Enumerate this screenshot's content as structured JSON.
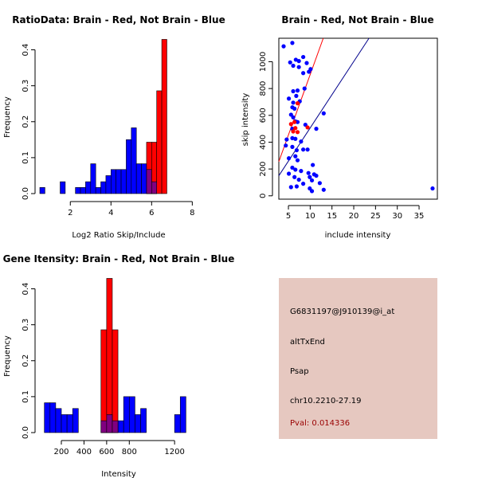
{
  "chart_data": [
    {
      "type": "histogram",
      "title": "RatioData: Brain - Red, Not Brain - Blue",
      "xlabel": "Log2 Ratio Skip/Include",
      "ylabel": "Frequency",
      "xlim": [
        0.5,
        8.3
      ],
      "ylim": [
        0,
        0.43
      ],
      "xticks": [
        2,
        4,
        6,
        8
      ],
      "yticks": [
        0.0,
        0.1,
        0.2,
        0.3,
        0.4
      ],
      "bins": [
        0.5,
        0.75,
        1.0,
        1.25,
        1.5,
        1.75,
        2.0,
        2.25,
        2.5,
        2.75,
        3.0,
        3.25,
        3.5,
        3.75,
        4.0,
        4.25,
        4.5,
        4.75,
        5.0,
        5.25,
        5.5,
        5.75,
        6.0,
        6.25,
        6.5,
        6.75,
        7.0,
        7.25,
        7.5,
        7.75,
        8.0
      ],
      "series": [
        {
          "name": "Brain",
          "color": "#ff0000",
          "values": [
            0,
            0,
            0,
            0,
            0,
            0,
            0,
            0,
            0,
            0,
            0,
            0,
            0,
            0,
            0,
            0,
            0,
            0,
            0,
            0,
            0,
            0.143,
            0.143,
            0.286,
            0.429,
            0,
            0,
            0,
            0,
            0
          ]
        },
        {
          "name": "Not Brain",
          "color": "#0000ff",
          "values": [
            0.017,
            0,
            0,
            0,
            0.033,
            0,
            0,
            0.017,
            0.017,
            0.033,
            0.083,
            0.017,
            0.033,
            0.05,
            0.067,
            0.067,
            0.067,
            0.15,
            0.183,
            0.083,
            0.083,
            0.067,
            0.033,
            0,
            0,
            0,
            0,
            0,
            0,
            0
          ]
        }
      ]
    },
    {
      "type": "scatter",
      "title": "Brain - Red, Not Brain - Blue",
      "xlabel": "include intensity",
      "ylabel": "skip intensity",
      "xlim": [
        2.8,
        39.2
      ],
      "ylim": [
        -25,
        1175
      ],
      "xticks": [
        5,
        10,
        15,
        20,
        25,
        30,
        35
      ],
      "yticks": [
        0,
        200,
        400,
        600,
        800,
        1000
      ],
      "series": [
        {
          "name": "Not Brain",
          "color": "#0000ff",
          "points": [
            [
              3.9,
              1115
            ],
            [
              5.9,
              1140
            ],
            [
              6.7,
              1015
            ],
            [
              5.4,
              995
            ],
            [
              6.1,
              970
            ],
            [
              7.4,
              1005
            ],
            [
              7.4,
              960
            ],
            [
              8.4,
              1035
            ],
            [
              8.4,
              915
            ],
            [
              9.2,
              990
            ],
            [
              10.1,
              945
            ],
            [
              9.7,
              925
            ],
            [
              7.1,
              785
            ],
            [
              6.1,
              780
            ],
            [
              6.8,
              745
            ],
            [
              8.7,
              800
            ],
            [
              5.1,
              725
            ],
            [
              6.1,
              695
            ],
            [
              5.9,
              660
            ],
            [
              7.6,
              705
            ],
            [
              6.4,
              650
            ],
            [
              5.6,
              605
            ],
            [
              6.1,
              585
            ],
            [
              7.1,
              550
            ],
            [
              6.6,
              555
            ],
            [
              8.9,
              530
            ],
            [
              13.1,
              615
            ],
            [
              11.4,
              500
            ],
            [
              5.9,
              500
            ],
            [
              4.6,
              420
            ],
            [
              5.9,
              430
            ],
            [
              6.6,
              425
            ],
            [
              7.9,
              405
            ],
            [
              4.4,
              375
            ],
            [
              5.9,
              365
            ],
            [
              6.9,
              340
            ],
            [
              8.4,
              345
            ],
            [
              9.4,
              345
            ],
            [
              5.1,
              280
            ],
            [
              6.6,
              295
            ],
            [
              7.1,
              265
            ],
            [
              5.9,
              210
            ],
            [
              10.6,
              230
            ],
            [
              6.6,
              195
            ],
            [
              7.9,
              185
            ],
            [
              5.1,
              165
            ],
            [
              9.6,
              170
            ],
            [
              10.9,
              160
            ],
            [
              6.4,
              140
            ],
            [
              9.9,
              140
            ],
            [
              11.4,
              150
            ],
            [
              7.4,
              120
            ],
            [
              10.4,
              115
            ],
            [
              12.2,
              95
            ],
            [
              8.4,
              90
            ],
            [
              5.6,
              65
            ],
            [
              6.9,
              70
            ],
            [
              9.9,
              55
            ],
            [
              13.1,
              45
            ],
            [
              10.4,
              35
            ],
            [
              38.1,
              55
            ]
          ]
        },
        {
          "name": "Brain",
          "color": "#ff0000",
          "points": [
            [
              5.6,
              535
            ],
            [
              6.4,
              550
            ],
            [
              6.6,
              505
            ],
            [
              7.1,
              475
            ],
            [
              7.1,
              690
            ],
            [
              9.4,
              510
            ],
            [
              6.1,
              480
            ]
          ]
        }
      ],
      "lines": [
        {
          "color": "#ff0000",
          "from": [
            2.8,
            255
          ],
          "to": [
            13.0,
            1175
          ]
        },
        {
          "color": "#00008b",
          "from": [
            2.8,
            150
          ],
          "to": [
            23.5,
            1175
          ]
        }
      ]
    },
    {
      "type": "histogram",
      "title": "Gene Itensity: Brain - Red, Not Brain - Blue",
      "xlabel": "Intensity",
      "ylabel": "Frequency",
      "xlim": [
        10,
        1410
      ],
      "ylim": [
        0,
        0.43
      ],
      "xticks": [
        200,
        400,
        600,
        800,
        1200
      ],
      "yticks": [
        0.0,
        0.1,
        0.2,
        0.3,
        0.4
      ],
      "bins": [
        50,
        100,
        150,
        200,
        250,
        300,
        350,
        400,
        450,
        500,
        550,
        600,
        650,
        700,
        750,
        800,
        850,
        900,
        950,
        1000,
        1050,
        1100,
        1150,
        1200,
        1250,
        1300,
        1350,
        1400
      ],
      "series": [
        {
          "name": "Brain",
          "color": "#ff0000",
          "values": [
            0,
            0,
            0,
            0,
            0,
            0,
            0,
            0,
            0,
            0,
            0.286,
            0.429,
            0.286,
            0,
            0,
            0,
            0,
            0,
            0,
            0,
            0,
            0,
            0,
            0,
            0,
            0,
            0
          ]
        },
        {
          "name": "Not Brain",
          "color": "#0000ff",
          "values": [
            0.083,
            0.083,
            0.067,
            0.05,
            0.05,
            0.067,
            0,
            0,
            0,
            0,
            0.033,
            0.05,
            0.033,
            0.033,
            0.1,
            0.1,
            0.05,
            0.067,
            0,
            0,
            0,
            0,
            0,
            0.05,
            0.1,
            0,
            0
          ]
        }
      ]
    }
  ],
  "info_panel": {
    "probe_id": "G6831197@J910139@i_at",
    "event_type": "altTxEnd",
    "gene": "Psap",
    "location": "chr10.2210-27.19",
    "pval": "Pval: 0.014336"
  }
}
